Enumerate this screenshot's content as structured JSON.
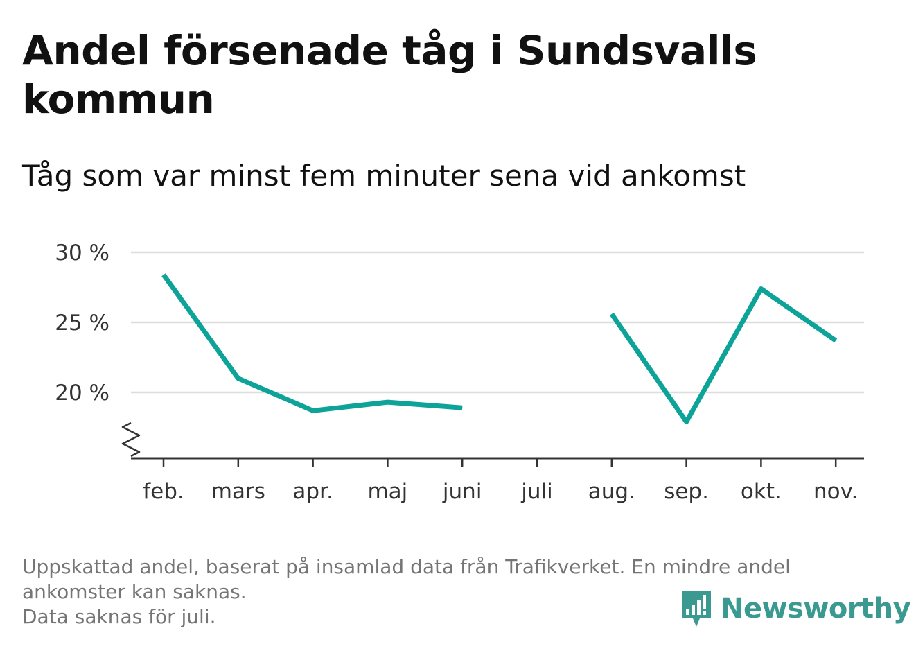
{
  "title": "Andel försenade tåg i Sundsvalls kommun",
  "subtitle": "Tåg som var minst fem minuter sena vid ankomst",
  "footnote": {
    "line1": "Uppskattad andel, baserat på insamlad data från Trafikverket. En mindre andel",
    "line2": "ankomster kan saknas.",
    "line3": "Data saknas för juli."
  },
  "brand": {
    "name": "Newsworthy",
    "icon": "newsworthy-logo-icon",
    "color": "#3a9a92"
  },
  "colors": {
    "line": "#0ea399",
    "grid": "#dddddd",
    "axis": "#333333",
    "text": "#111111",
    "muted": "#757575"
  },
  "chart_data": {
    "type": "line",
    "categories": [
      "feb.",
      "mars",
      "apr.",
      "maj",
      "juni",
      "juli",
      "aug.",
      "sep.",
      "okt.",
      "nov."
    ],
    "series": [
      {
        "values": [
          28.4,
          21.0,
          18.7,
          19.3,
          18.9,
          null,
          25.6,
          17.9,
          27.4,
          23.7
        ]
      }
    ],
    "yticks": [
      {
        "value": 20,
        "label": "20 %"
      },
      {
        "value": 25,
        "label": "25 %"
      },
      {
        "value": 30,
        "label": "30 %"
      }
    ],
    "ylim": [
      15.2,
      30
    ],
    "axis_break": true,
    "grid": true,
    "xlabel": "",
    "ylabel": ""
  }
}
